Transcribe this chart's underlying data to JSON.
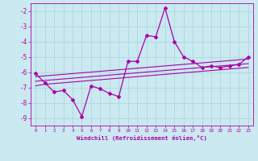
{
  "xlabel": "Windchill (Refroidissement éolien,°C)",
  "bg_color": "#cbe9f0",
  "line_color": "#aa00aa",
  "grid_color": "#aad8e0",
  "x_data": [
    0,
    1,
    2,
    3,
    4,
    5,
    6,
    7,
    8,
    9,
    10,
    11,
    12,
    13,
    14,
    15,
    16,
    17,
    18,
    19,
    20,
    21,
    22,
    23
  ],
  "y_main": [
    -6.1,
    -6.7,
    -7.3,
    -7.2,
    -7.8,
    -8.9,
    -6.9,
    -7.1,
    -7.4,
    -7.6,
    -5.3,
    -5.3,
    -3.6,
    -3.7,
    -1.8,
    -4.0,
    -5.0,
    -5.3,
    -5.7,
    -5.6,
    -5.7,
    -5.6,
    -5.5,
    -5.0
  ],
  "y_reg1": [
    -6.9,
    -6.8,
    -6.75,
    -6.7,
    -6.65,
    -6.6,
    -6.55,
    -6.5,
    -6.45,
    -6.4,
    -6.35,
    -6.3,
    -6.25,
    -6.2,
    -6.15,
    -6.1,
    -6.05,
    -6.0,
    -5.95,
    -5.9,
    -5.85,
    -5.8,
    -5.75,
    -5.7
  ],
  "y_reg2": [
    -6.6,
    -6.55,
    -6.5,
    -6.45,
    -6.4,
    -6.35,
    -6.3,
    -6.25,
    -6.2,
    -6.15,
    -6.1,
    -6.05,
    -6.0,
    -5.95,
    -5.9,
    -5.85,
    -5.8,
    -5.75,
    -5.7,
    -5.65,
    -5.6,
    -5.55,
    -5.5,
    -5.45
  ],
  "y_reg3": [
    -6.3,
    -6.25,
    -6.2,
    -6.15,
    -6.1,
    -6.05,
    -6.0,
    -5.95,
    -5.9,
    -5.85,
    -5.8,
    -5.75,
    -5.7,
    -5.65,
    -5.6,
    -5.55,
    -5.5,
    -5.45,
    -5.4,
    -5.35,
    -5.3,
    -5.25,
    -5.2,
    -5.15
  ],
  "ylim": [
    -9.5,
    -1.5
  ],
  "xlim": [
    -0.5,
    23.5
  ],
  "yticks": [
    -2,
    -3,
    -4,
    -5,
    -6,
    -7,
    -8,
    -9
  ],
  "xticks": [
    0,
    1,
    2,
    3,
    4,
    5,
    6,
    7,
    8,
    9,
    10,
    11,
    12,
    13,
    14,
    15,
    16,
    17,
    18,
    19,
    20,
    21,
    22,
    23
  ]
}
